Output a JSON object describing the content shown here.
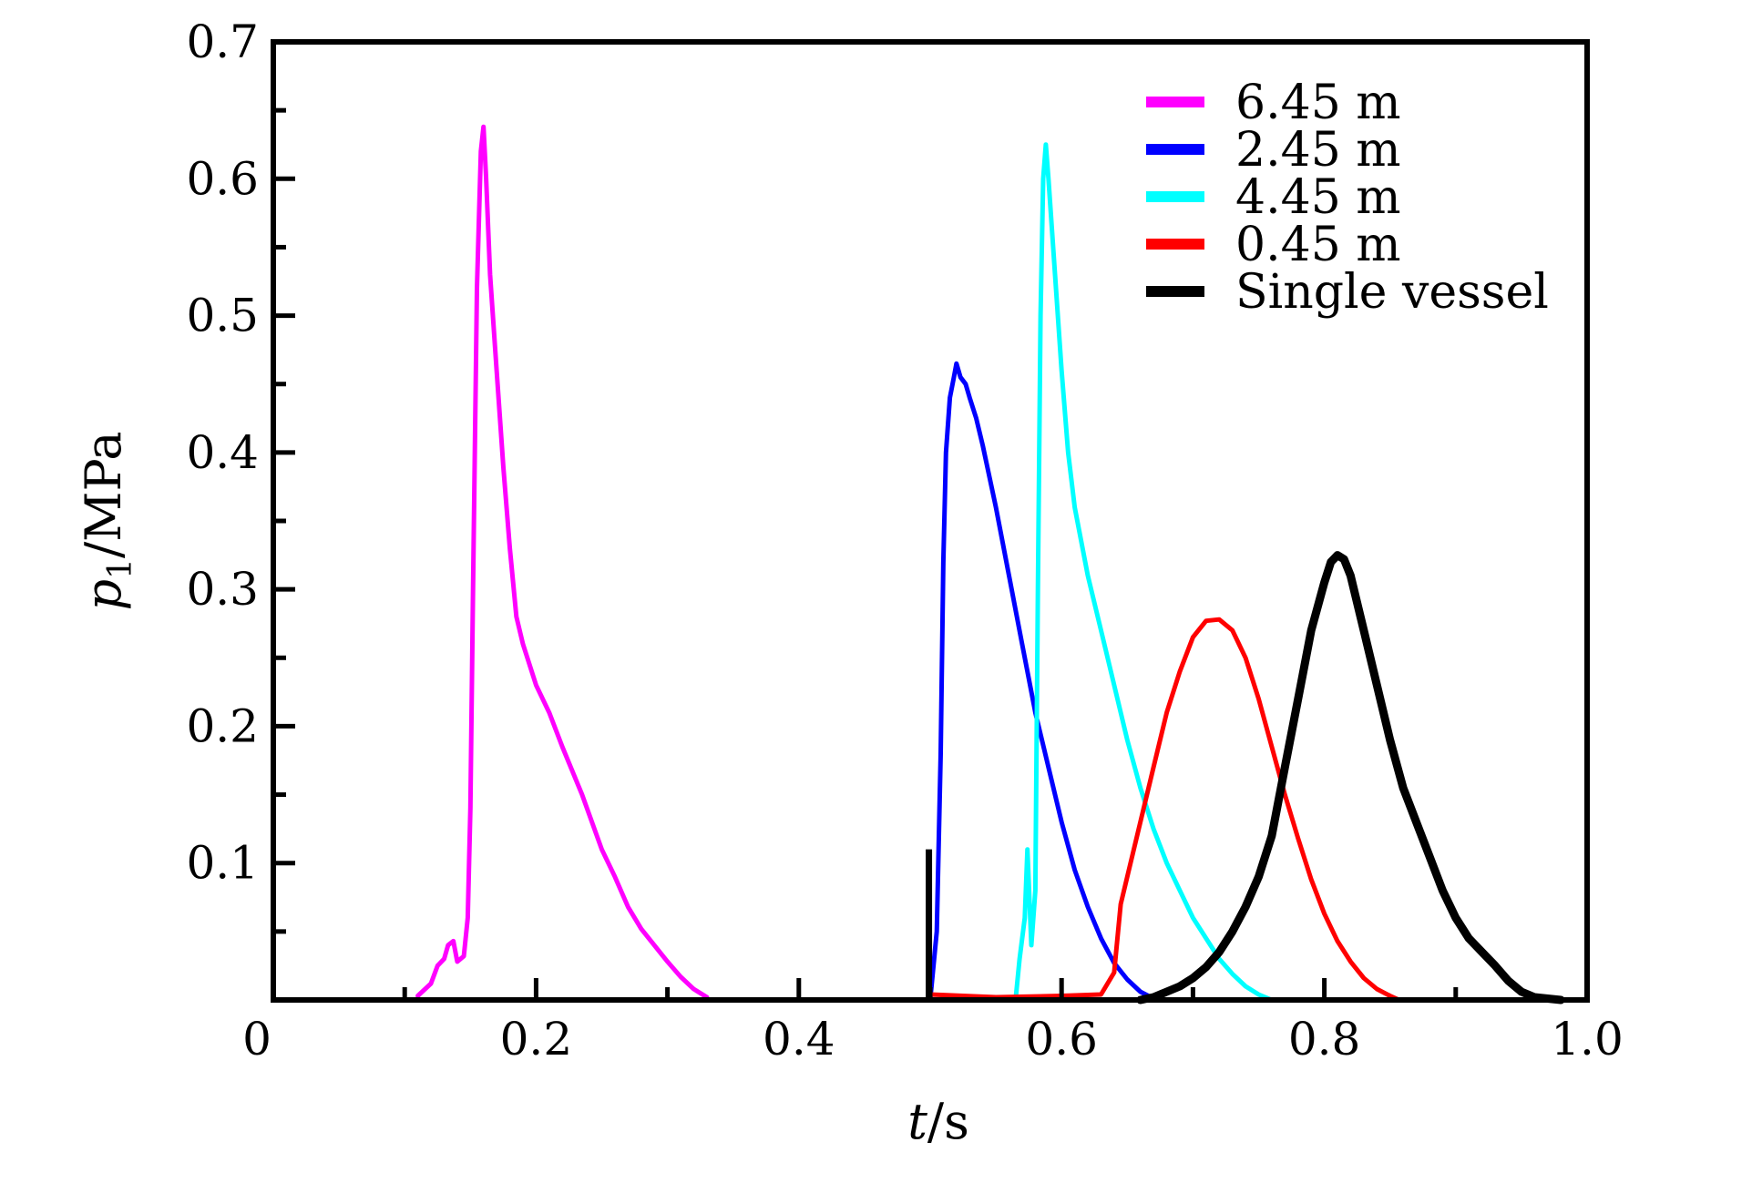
{
  "chart_data": {
    "type": "line",
    "title": "",
    "xlabel": {
      "var": "t",
      "unit": "/s"
    },
    "ylabel": {
      "var": "p",
      "sub": "1",
      "unit": "/MPa"
    },
    "xlim": [
      0,
      1.0
    ],
    "ylim": [
      0,
      0.7
    ],
    "x_ticks": [
      0,
      0.2,
      0.4,
      0.6,
      0.8,
      1.0
    ],
    "x_tick_labels": [
      "0",
      "0.2",
      "0.4",
      "0.6",
      "0.8",
      "1.0"
    ],
    "y_ticks": [
      0.1,
      0.2,
      0.3,
      0.4,
      0.5,
      0.6,
      0.7
    ],
    "y_tick_labels": [
      "0.1",
      "0.2",
      "0.3",
      "0.4",
      "0.5",
      "0.6",
      "0.7"
    ],
    "grid": false,
    "legend_position": "top-right",
    "series": [
      {
        "name": "6.45 m",
        "color": "#ff00ff",
        "x": [
          0.11,
          0.12,
          0.125,
          0.13,
          0.133,
          0.137,
          0.14,
          0.145,
          0.148,
          0.15,
          0.152,
          0.155,
          0.158,
          0.16,
          0.162,
          0.165,
          0.17,
          0.175,
          0.18,
          0.185,
          0.19,
          0.2,
          0.21,
          0.22,
          0.235,
          0.25,
          0.26,
          0.27,
          0.28,
          0.29,
          0.3,
          0.31,
          0.32,
          0.33
        ],
        "y": [
          0.003,
          0.012,
          0.025,
          0.03,
          0.04,
          0.043,
          0.028,
          0.032,
          0.06,
          0.14,
          0.3,
          0.52,
          0.62,
          0.638,
          0.6,
          0.53,
          0.46,
          0.39,
          0.33,
          0.28,
          0.26,
          0.23,
          0.21,
          0.185,
          0.15,
          0.11,
          0.09,
          0.068,
          0.052,
          0.04,
          0.028,
          0.017,
          0.008,
          0.002
        ]
      },
      {
        "name": "2.45 m",
        "color": "#0000ff",
        "x": [
          0.5,
          0.505,
          0.508,
          0.51,
          0.512,
          0.515,
          0.518,
          0.52,
          0.523,
          0.527,
          0.53,
          0.535,
          0.54,
          0.55,
          0.56,
          0.57,
          0.58,
          0.59,
          0.6,
          0.61,
          0.62,
          0.63,
          0.64,
          0.65,
          0.66,
          0.67,
          0.675
        ],
        "y": [
          0.0,
          0.05,
          0.18,
          0.32,
          0.4,
          0.44,
          0.455,
          0.465,
          0.455,
          0.45,
          0.44,
          0.425,
          0.405,
          0.36,
          0.31,
          0.26,
          0.21,
          0.17,
          0.13,
          0.095,
          0.068,
          0.045,
          0.027,
          0.015,
          0.006,
          0.001,
          0.0
        ]
      },
      {
        "name": "4.45 m",
        "color": "#00ffff",
        "x": [
          0.565,
          0.568,
          0.572,
          0.574,
          0.577,
          0.58,
          0.582,
          0.584,
          0.586,
          0.588,
          0.59,
          0.595,
          0.6,
          0.605,
          0.61,
          0.62,
          0.63,
          0.64,
          0.65,
          0.66,
          0.67,
          0.68,
          0.69,
          0.7,
          0.71,
          0.72,
          0.73,
          0.74,
          0.75,
          0.76
        ],
        "y": [
          0.0,
          0.03,
          0.06,
          0.11,
          0.04,
          0.08,
          0.3,
          0.5,
          0.6,
          0.625,
          0.6,
          0.53,
          0.46,
          0.4,
          0.36,
          0.31,
          0.27,
          0.23,
          0.19,
          0.155,
          0.125,
          0.1,
          0.08,
          0.06,
          0.045,
          0.03,
          0.019,
          0.01,
          0.004,
          0.0
        ]
      },
      {
        "name": "0.45 m",
        "color": "#ff0000",
        "x": [
          0.5,
          0.55,
          0.6,
          0.63,
          0.64,
          0.643,
          0.645,
          0.65,
          0.66,
          0.67,
          0.68,
          0.69,
          0.7,
          0.71,
          0.72,
          0.73,
          0.74,
          0.75,
          0.76,
          0.77,
          0.78,
          0.79,
          0.8,
          0.81,
          0.82,
          0.83,
          0.84,
          0.85,
          0.857
        ],
        "y": [
          0.004,
          0.002,
          0.003,
          0.004,
          0.02,
          0.05,
          0.07,
          0.09,
          0.13,
          0.17,
          0.21,
          0.24,
          0.265,
          0.277,
          0.278,
          0.27,
          0.25,
          0.22,
          0.185,
          0.15,
          0.118,
          0.088,
          0.063,
          0.043,
          0.028,
          0.016,
          0.008,
          0.003,
          0.0
        ]
      },
      {
        "name": "Single vessel",
        "color": "#000000",
        "x": [
          0.66,
          0.67,
          0.68,
          0.69,
          0.7,
          0.71,
          0.72,
          0.73,
          0.74,
          0.75,
          0.76,
          0.77,
          0.78,
          0.79,
          0.8,
          0.805,
          0.81,
          0.815,
          0.82,
          0.83,
          0.84,
          0.85,
          0.86,
          0.87,
          0.88,
          0.89,
          0.9,
          0.91,
          0.92,
          0.93,
          0.94,
          0.95,
          0.96,
          0.97,
          0.98
        ],
        "y": [
          0.0,
          0.002,
          0.006,
          0.01,
          0.016,
          0.024,
          0.035,
          0.05,
          0.068,
          0.09,
          0.12,
          0.17,
          0.22,
          0.27,
          0.305,
          0.32,
          0.325,
          0.322,
          0.31,
          0.27,
          0.23,
          0.19,
          0.155,
          0.13,
          0.105,
          0.08,
          0.06,
          0.045,
          0.035,
          0.025,
          0.014,
          0.006,
          0.002,
          0.001,
          0.0
        ]
      }
    ],
    "spike": {
      "x": 0.499,
      "y": 0.11,
      "color": "#000000"
    }
  }
}
